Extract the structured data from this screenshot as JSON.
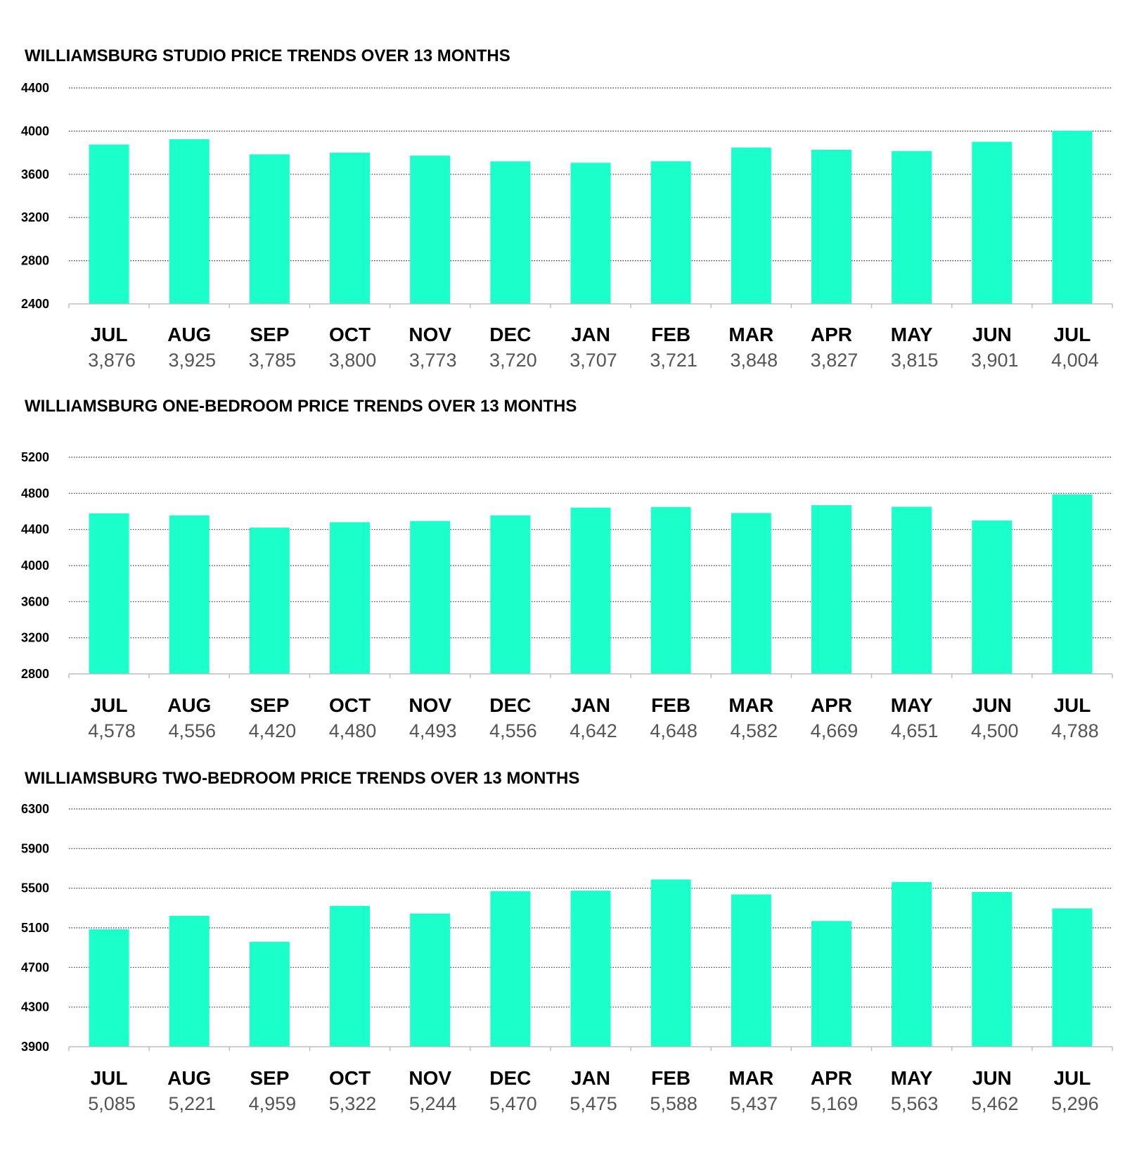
{
  "chart_data": [
    {
      "type": "bar",
      "title": "WILLIAMSBURG STUDIO PRICE TRENDS OVER 13 MONTHS",
      "categories": [
        "JUL",
        "AUG",
        "SEP",
        "OCT",
        "NOV",
        "DEC",
        "JAN",
        "FEB",
        "MAR",
        "APR",
        "MAY",
        "JUN",
        "JUL"
      ],
      "values": [
        3876,
        3925,
        3785,
        3800,
        3773,
        3720,
        3707,
        3721,
        3848,
        3827,
        3815,
        3901,
        4004
      ],
      "value_labels": [
        "3,876",
        "3,925",
        "3,785",
        "3,800",
        "3,773",
        "3,720",
        "3,707",
        "3,721",
        "3,848",
        "3,827",
        "3,815",
        "3,901",
        "4,004"
      ],
      "yticks": [
        2400,
        2800,
        3200,
        3600,
        4000,
        4400
      ],
      "ylim": [
        2400,
        4400
      ],
      "grid": true,
      "bar_color": "#1BFFCB"
    },
    {
      "type": "bar",
      "title": "WILLIAMSBURG ONE-BEDROOM PRICE TRENDS OVER 13 MONTHS",
      "categories": [
        "JUL",
        "AUG",
        "SEP",
        "OCT",
        "NOV",
        "DEC",
        "JAN",
        "FEB",
        "MAR",
        "APR",
        "MAY",
        "JUN",
        "JUL"
      ],
      "values": [
        4578,
        4556,
        4420,
        4480,
        4493,
        4556,
        4642,
        4648,
        4582,
        4669,
        4651,
        4500,
        4788
      ],
      "value_labels": [
        "4,578",
        "4,556",
        "4,420",
        "4,480",
        "4,493",
        "4,556",
        "4,642",
        "4,648",
        "4,582",
        "4,669",
        "4,651",
        "4,500",
        "4,788"
      ],
      "yticks": [
        2800,
        3200,
        3600,
        4000,
        4400,
        4800,
        5200
      ],
      "ylim": [
        2800,
        5200
      ],
      "grid": true,
      "bar_color": "#1BFFCB"
    },
    {
      "type": "bar",
      "title": "WILLIAMSBURG TWO-BEDROOM PRICE TRENDS OVER 13 MONTHS",
      "categories": [
        "JUL",
        "AUG",
        "SEP",
        "OCT",
        "NOV",
        "DEC",
        "JAN",
        "FEB",
        "MAR",
        "APR",
        "MAY",
        "JUN",
        "JUL"
      ],
      "values": [
        5085,
        5221,
        4959,
        5322,
        5244,
        5470,
        5475,
        5588,
        5437,
        5169,
        5563,
        5462,
        5296
      ],
      "value_labels": [
        "5,085",
        "5,221",
        "4,959",
        "5,322",
        "5,244",
        "5,470",
        "5,475",
        "5,588",
        "5,437",
        "5,169",
        "5,563",
        "5,462",
        "5,296"
      ],
      "yticks": [
        3900,
        4300,
        4700,
        5100,
        5500,
        5900,
        6300
      ],
      "ylim": [
        3900,
        6300
      ],
      "grid": true,
      "bar_color": "#1BFFCB"
    }
  ]
}
